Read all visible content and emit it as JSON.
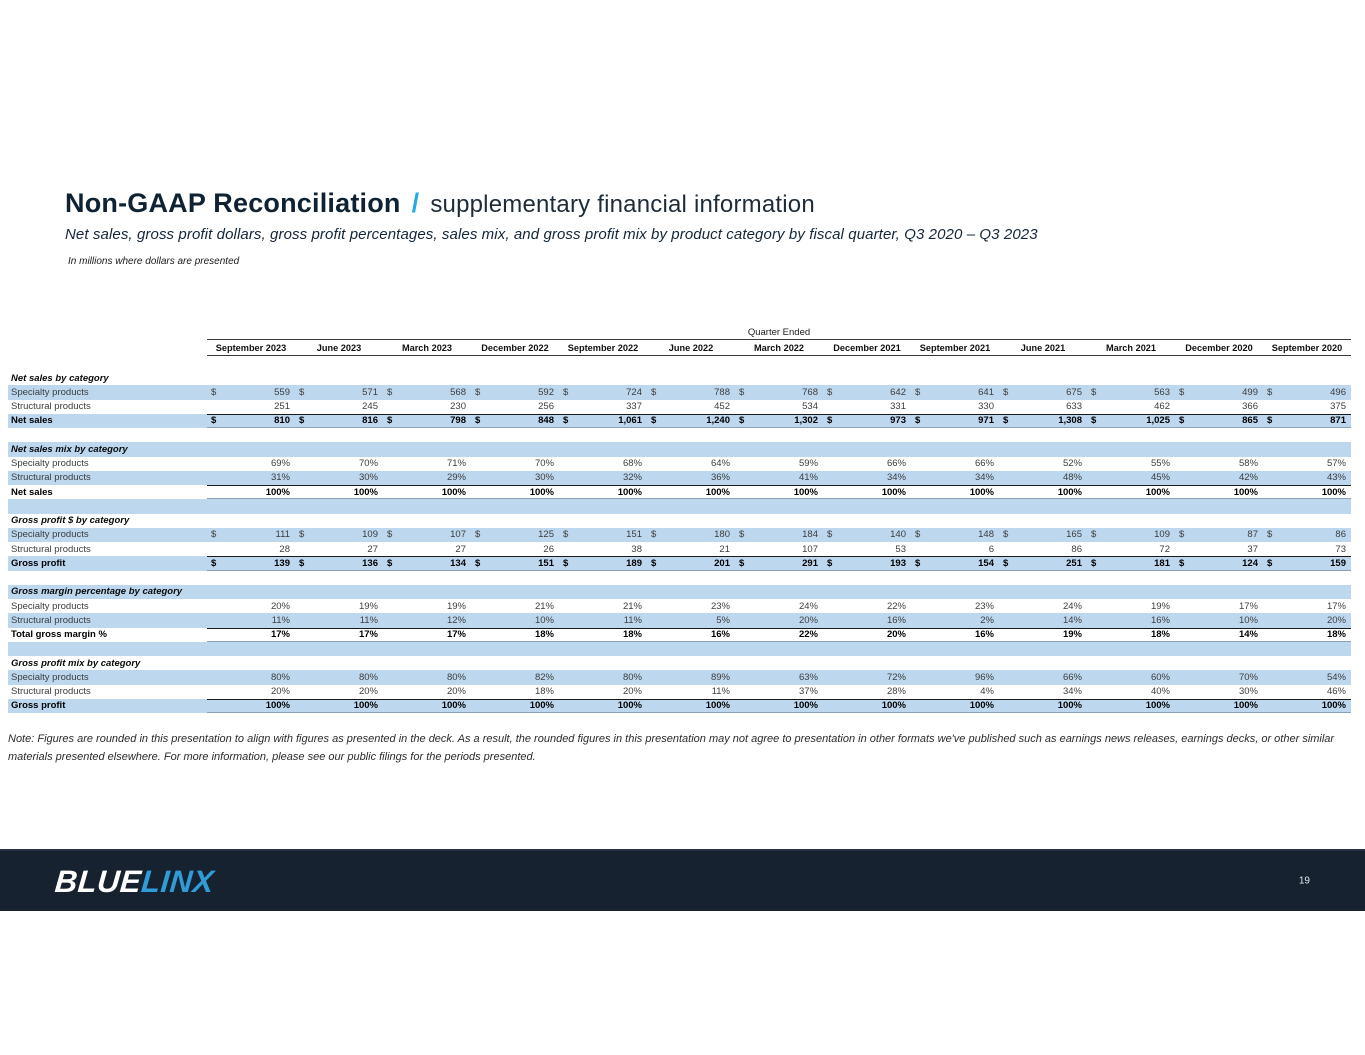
{
  "header": {
    "title": "Non-GAAP Reconciliation",
    "separator": "/",
    "subtitle": "supplementary financial information",
    "description": "Net sales, gross profit dollars, gross profit percentages, sales mix, and gross profit mix by product category by fiscal quarter, Q3 2020 – Q3 2023",
    "units_note": "In millions where dollars are presented"
  },
  "table": {
    "group_header": "Quarter Ended",
    "columns": [
      "September 2023",
      "June 2023",
      "March 2023",
      "December 2022",
      "September 2022",
      "June 2022",
      "March 2022",
      "December 2021",
      "September 2021",
      "June 2021",
      "March 2021",
      "December 2020",
      "September 2020"
    ],
    "sections": [
      {
        "title": "Net sales by category",
        "rows": [
          {
            "label": "Specialty products",
            "dollar": true,
            "total": false,
            "values": [
              "559",
              "571",
              "568",
              "592",
              "724",
              "788",
              "768",
              "642",
              "641",
              "675",
              "563",
              "499",
              "496"
            ]
          },
          {
            "label": "Structural products",
            "dollar": false,
            "total": false,
            "values": [
              "251",
              "245",
              "230",
              "256",
              "337",
              "452",
              "534",
              "331",
              "330",
              "633",
              "462",
              "366",
              "375"
            ]
          },
          {
            "label": "Net sales",
            "dollar": true,
            "total": true,
            "values": [
              "810",
              "816",
              "798",
              "848",
              "1,061",
              "1,240",
              "1,302",
              "973",
              "971",
              "1,308",
              "1,025",
              "865",
              "871"
            ]
          }
        ]
      },
      {
        "title": "Net sales mix by category",
        "rows": [
          {
            "label": "Specialty products",
            "dollar": false,
            "total": false,
            "values": [
              "69%",
              "70%",
              "71%",
              "70%",
              "68%",
              "64%",
              "59%",
              "66%",
              "66%",
              "52%",
              "55%",
              "58%",
              "57%"
            ]
          },
          {
            "label": "Structural products",
            "dollar": false,
            "total": false,
            "values": [
              "31%",
              "30%",
              "29%",
              "30%",
              "32%",
              "36%",
              "41%",
              "34%",
              "34%",
              "48%",
              "45%",
              "42%",
              "43%"
            ]
          },
          {
            "label": "Net sales",
            "dollar": false,
            "total": true,
            "values": [
              "100%",
              "100%",
              "100%",
              "100%",
              "100%",
              "100%",
              "100%",
              "100%",
              "100%",
              "100%",
              "100%",
              "100%",
              "100%"
            ]
          }
        ]
      },
      {
        "title": "Gross profit $ by category",
        "rows": [
          {
            "label": "Specialty products",
            "dollar": true,
            "total": false,
            "values": [
              "111",
              "109",
              "107",
              "125",
              "151",
              "180",
              "184",
              "140",
              "148",
              "165",
              "109",
              "87",
              "86"
            ]
          },
          {
            "label": "Structural products",
            "dollar": false,
            "total": false,
            "values": [
              "28",
              "27",
              "27",
              "26",
              "38",
              "21",
              "107",
              "53",
              "6",
              "86",
              "72",
              "37",
              "73"
            ]
          },
          {
            "label": "Gross profit",
            "dollar": true,
            "total": true,
            "values": [
              "139",
              "136",
              "134",
              "151",
              "189",
              "201",
              "291",
              "193",
              "154",
              "251",
              "181",
              "124",
              "159"
            ]
          }
        ]
      },
      {
        "title": "Gross margin percentage by category",
        "rows": [
          {
            "label": "Specialty products",
            "dollar": false,
            "total": false,
            "values": [
              "20%",
              "19%",
              "19%",
              "21%",
              "21%",
              "23%",
              "24%",
              "22%",
              "23%",
              "24%",
              "19%",
              "17%",
              "17%"
            ]
          },
          {
            "label": "Structural products",
            "dollar": false,
            "total": false,
            "values": [
              "11%",
              "11%",
              "12%",
              "10%",
              "11%",
              "5%",
              "20%",
              "16%",
              "2%",
              "14%",
              "16%",
              "10%",
              "20%"
            ]
          },
          {
            "label": "Total gross margin %",
            "dollar": false,
            "total": true,
            "values": [
              "17%",
              "17%",
              "17%",
              "18%",
              "18%",
              "16%",
              "22%",
              "20%",
              "16%",
              "19%",
              "18%",
              "14%",
              "18%"
            ]
          }
        ]
      },
      {
        "title": "Gross profit mix by category",
        "rows": [
          {
            "label": "Specialty products",
            "dollar": false,
            "total": false,
            "values": [
              "80%",
              "80%",
              "80%",
              "82%",
              "80%",
              "89%",
              "63%",
              "72%",
              "96%",
              "66%",
              "60%",
              "70%",
              "54%"
            ]
          },
          {
            "label": "Structural products",
            "dollar": false,
            "total": false,
            "values": [
              "20%",
              "20%",
              "20%",
              "18%",
              "20%",
              "11%",
              "37%",
              "28%",
              "4%",
              "34%",
              "40%",
              "30%",
              "46%"
            ]
          },
          {
            "label": "Gross profit",
            "dollar": false,
            "total": true,
            "values": [
              "100%",
              "100%",
              "100%",
              "100%",
              "100%",
              "100%",
              "100%",
              "100%",
              "100%",
              "100%",
              "100%",
              "100%",
              "100%"
            ]
          }
        ]
      }
    ]
  },
  "note": "Note: Figures are rounded in this presentation to align with figures as presented in the deck. As a result, the rounded figures in this presentation may not agree to presentation in other formats we've published such as earnings news releases, earnings decks, or other similar materials presented elsewhere. For more information, please see our public filings for the periods presented.",
  "footer": {
    "logo_blue": "BLUE",
    "logo_linx": "LINX",
    "page_number": "19"
  },
  "colors": {
    "stripe_blue": "#BDD7EE",
    "accent_blue": "#29A9E1",
    "logo_linx_blue": "#2F9CD8",
    "footer_bg": "#16222F",
    "title_navy": "#0E2233"
  }
}
